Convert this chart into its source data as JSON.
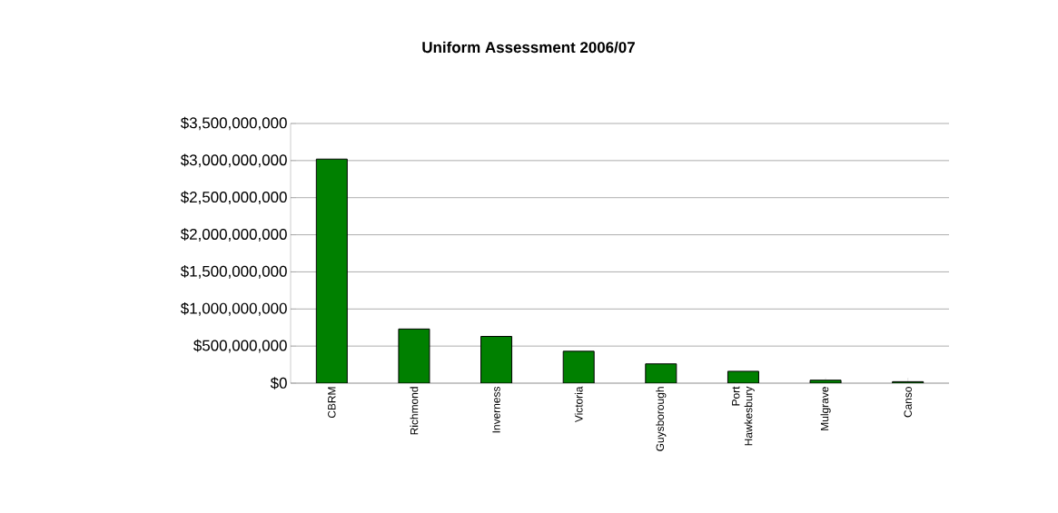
{
  "chart_data": {
    "type": "bar",
    "title": "Uniform Assessment 2006/07",
    "categories": [
      "CBRM",
      "Richmond",
      "Inverness",
      "Victoria",
      "Guysborough",
      "Port Hawkesbury",
      "Mulgrave",
      "Canso"
    ],
    "values": [
      3020000000,
      730000000,
      630000000,
      430000000,
      260000000,
      160000000,
      40000000,
      20000000
    ],
    "color": "#008000",
    "ylim": [
      0,
      3500000000
    ],
    "yticks": [
      {
        "value": 0,
        "label": "$0"
      },
      {
        "value": 500000000,
        "label": "$500,000,000"
      },
      {
        "value": 1000000000,
        "label": "$1,000,000,000"
      },
      {
        "value": 1500000000,
        "label": "$1,500,000,000"
      },
      {
        "value": 2000000000,
        "label": "$2,000,000,000"
      },
      {
        "value": 2500000000,
        "label": "$2,500,000,000"
      },
      {
        "value": 3000000000,
        "label": "$3,000,000,000"
      },
      {
        "value": 3500000000,
        "label": "$3,500,000,000"
      }
    ],
    "grid": "y"
  }
}
